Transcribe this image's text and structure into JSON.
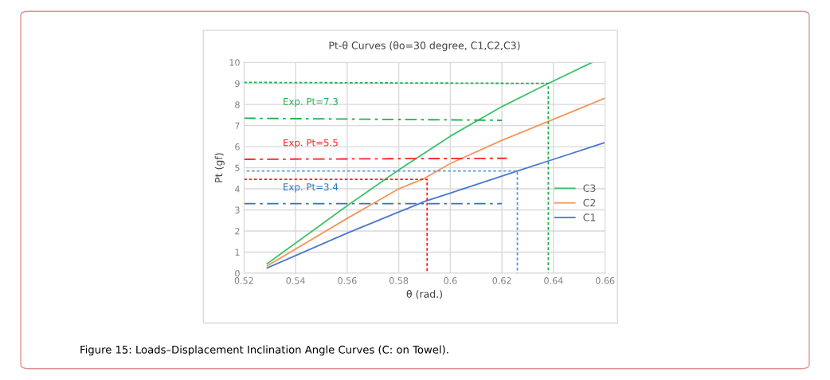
{
  "chart_data": {
    "type": "line",
    "title": "Pt-θ Curves (θo=30 degree, C1,C2,C3)",
    "xlabel": "θ (rad.)",
    "ylabel": "Pt (gf)",
    "xlim": [
      0.52,
      0.66
    ],
    "xticks": [
      0.52,
      0.54,
      0.56,
      0.58,
      {
        "value": 0.6,
        "label": "0.6"
      },
      0.62,
      0.64,
      0.66
    ],
    "ylim": [
      0,
      10
    ],
    "yticks": [
      0,
      1,
      2,
      3,
      4,
      5,
      6,
      7,
      8,
      9,
      10
    ],
    "grid": true,
    "legend": "right",
    "marker": "none",
    "series": [
      {
        "name": "C3",
        "color": "#3cc46a",
        "x": [
          0.529,
          0.56,
          0.58,
          0.6,
          0.62,
          0.638,
          0.655
        ],
        "values": [
          0.45,
          3.2,
          4.9,
          6.5,
          7.9,
          9.0,
          10.0
        ]
      },
      {
        "name": "C2",
        "color": "#f4975a",
        "x": [
          0.529,
          0.56,
          0.58,
          0.59,
          0.6,
          0.62,
          0.638,
          0.66
        ],
        "values": [
          0.35,
          2.6,
          4.0,
          4.5,
          5.2,
          6.3,
          7.2,
          8.3
        ]
      },
      {
        "name": "C1",
        "color": "#4a78d0",
        "x": [
          0.529,
          0.56,
          0.58,
          0.59,
          0.6,
          0.626,
          0.64,
          0.66
        ],
        "values": [
          0.25,
          1.9,
          2.9,
          3.4,
          3.8,
          4.85,
          5.4,
          6.2
        ]
      },
      {
        "color": "#22b050",
        "line_style": "dashed",
        "x": [
          0.52,
          0.62
        ],
        "values": [
          7.35,
          7.25
        ]
      },
      {
        "color": "#ff2020",
        "line_style": "dashed",
        "x": [
          0.52,
          0.622
        ],
        "values": [
          5.4,
          5.45
        ]
      },
      {
        "color": "#2e75c0",
        "line_style": "dashed",
        "x": [
          0.52,
          0.62
        ],
        "values": [
          3.3,
          3.3
        ]
      },
      {
        "color": "#22b050",
        "line_style": "dotted",
        "x": [
          0.52,
          0.638,
          0.638
        ],
        "values": [
          9.05,
          9.0,
          0
        ]
      },
      {
        "color": "#ff2020",
        "line_style": "dotted",
        "x": [
          0.52,
          0.591,
          0.591
        ],
        "values": [
          4.45,
          4.45,
          0
        ]
      },
      {
        "color": "#5b9bd5",
        "line_style": "dotted",
        "x": [
          0.521,
          0.626,
          0.626
        ],
        "values": [
          4.85,
          4.85,
          0
        ]
      }
    ],
    "annotations": [
      "Exp. Pt=7.3",
      "Exp. Pt=5.5",
      "Exp. Pt=3.4",
      "Figure 15: Loads–Displacement Inclination Angle Curves (C: on Towel)."
    ]
  }
}
